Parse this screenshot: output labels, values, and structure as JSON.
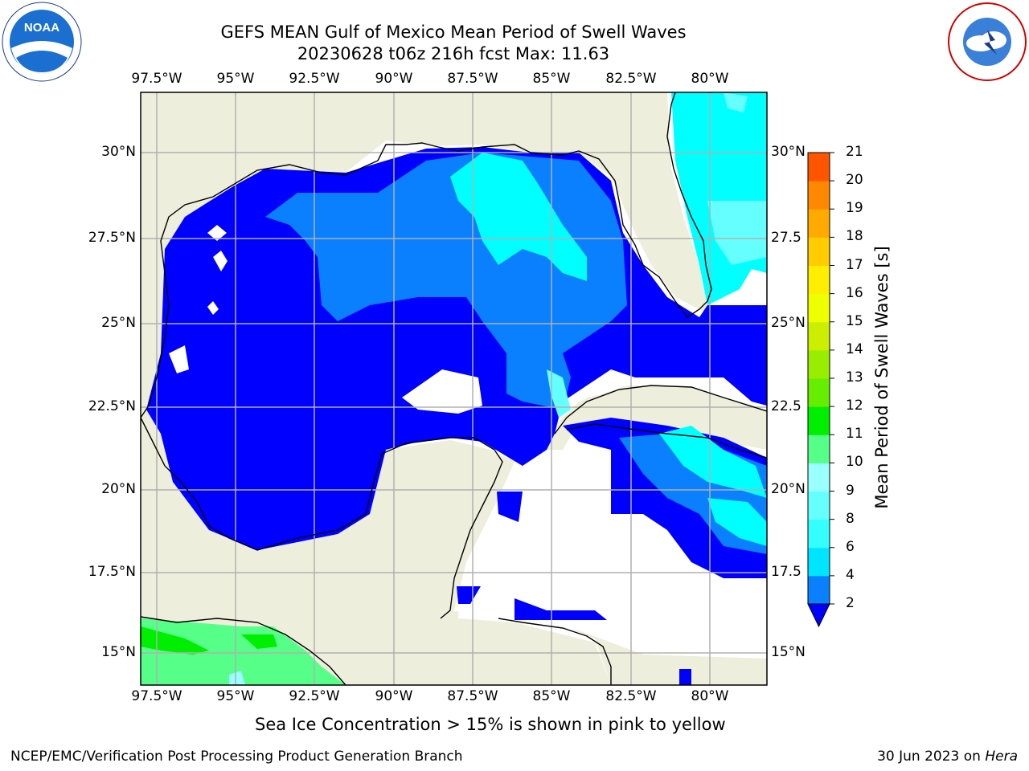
{
  "title_line1": "GEFS MEAN Gulf of Mexico Mean Period of Swell Waves",
  "title_line2": "20230628 t06z 216h fcst   Max: 11.63",
  "lon_labels": [
    "97.5°W",
    "95°W",
    "92.5°W",
    "90°W",
    "87.5°W",
    "85°W",
    "82.5°W",
    "80°W"
  ],
  "lat_labels_left": [
    "30°N",
    "27.5°N",
    "25°N",
    "22.5°N",
    "20°N",
    "17.5°N",
    "15°N"
  ],
  "lat_labels_right": [
    "30°N",
    "27.5",
    "25°N",
    "22.5",
    "20°N",
    "17.5",
    "15°N"
  ],
  "colorbar": {
    "label": "Mean Period of Swell Waves [s]",
    "ticks": [
      "2",
      "4",
      "6",
      "8",
      "9",
      "10",
      "11",
      "12",
      "13",
      "14",
      "15",
      "16",
      "17",
      "18",
      "19",
      "20",
      "21"
    ],
    "colors": [
      "#0a80ff",
      "#00e5ff",
      "#33ffff",
      "#66ffff",
      "#99ffff",
      "#55ff88",
      "#00ee00",
      "#66ee00",
      "#99ee00",
      "#ccee00",
      "#eeff00",
      "#ffee00",
      "#ffcc00",
      "#ffaa00",
      "#ff8800",
      "#ff5500",
      "#ff3300",
      "#ff0000"
    ],
    "extend_color": "#0000ff"
  },
  "note": "Sea Ice Concentration > 15% is shown in pink to yellow",
  "footer_left": "NCEP/EMC/Verification Post Processing Product Generation Branch",
  "footer_right_prefix": "30 Jun 2023 on ",
  "footer_right_host": "Hera",
  "logos": {
    "left": "NOAA",
    "right": "NATIONAL WEATHER SERVICE"
  },
  "colors": {
    "land": "#eeeedc",
    "grid": "#b0b0b0",
    "deep_blue": "#0000ff",
    "mid_blue": "#0a80ff",
    "cyan": "#00ffff",
    "light_cyan": "#66ffff",
    "green": "#55ff88",
    "bright_green": "#00ee00"
  }
}
